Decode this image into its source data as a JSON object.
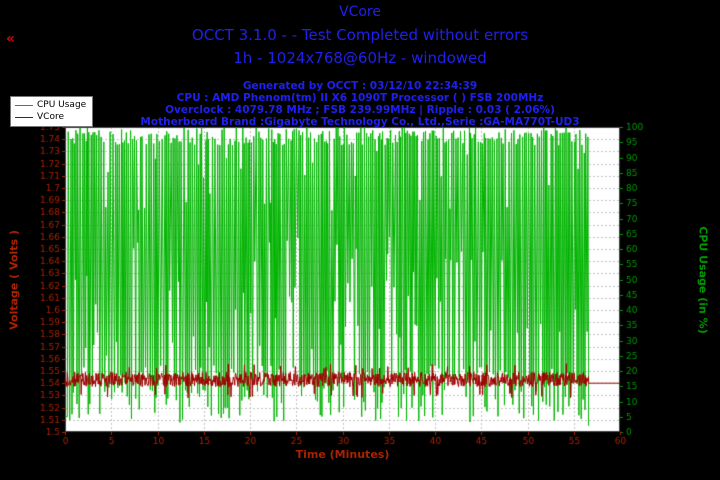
{
  "header": {
    "title": "VCore",
    "subtitle": "OCCT 3.1.0 -  - Test Completed without errors",
    "mode_line": "1h - 1024x768@60Hz - windowed",
    "info_lines": [
      "Generated by OCCT : 03/12/10 22:34:39",
      "CPU : AMD Phenom(tm) II X6 1090T Processor ( ) FSB 200MHz",
      "Overclock : 4079.78 MHz ; FSB 239.99MHz | Ripple : 0.03 ( 2.06%)",
      "Motherboard Brand :Gigabyte Technology Co., Ltd.,Serie :GA-MA770T-UD3"
    ],
    "title_color": "#2020ee"
  },
  "nav": {
    "prev_icon": "«",
    "color": "#e00000"
  },
  "legend": {
    "items": [
      {
        "label": "CPU Usage",
        "color": "#00b400"
      },
      {
        "label": "VCore",
        "color": "#a00000"
      }
    ]
  },
  "chart_data": {
    "type": "line",
    "title": "VCore",
    "xlabel": "Time (Minutes)",
    "xlabel_color": "#aa2200",
    "xlim": [
      0,
      60
    ],
    "x_tick_step": 5,
    "grid": true,
    "legend_position": "top-left-outside",
    "axes": {
      "left": {
        "label": "Voltage ( Volts )",
        "lim": [
          1.5,
          1.75
        ],
        "tick_step": 0.01,
        "color": "#aa2200"
      },
      "right": {
        "label": "CPU Usage (in %)",
        "lim": [
          0,
          100
        ],
        "tick_step": 5,
        "color": "#009900"
      }
    },
    "series": [
      {
        "name": "CPU Usage",
        "axis": "right",
        "color": "#00b400",
        "pattern": "rapid load/idle oscillation between ~5% and 100% for whole test",
        "start_value": 5,
        "end_value": 2,
        "data_end_min": 56.6,
        "half_period_min": 0.11,
        "high_main": [
          94,
          100
        ],
        "high_alt": [
          72,
          93
        ],
        "high_alt_p": 0.12,
        "low_main": [
          3,
          22
        ],
        "low_alt": [
          25,
          65
        ],
        "low_alt_p": 0.3,
        "seed": 20101203
      },
      {
        "name": "VCore",
        "axis": "left",
        "color": "#a00000",
        "pattern": "noisy band around 1.54 V, flat tail after test end",
        "mean": 1.543,
        "noise": 0.006,
        "dip_value": 1.528,
        "peak_value": 1.556,
        "sample_step_min": 0.05,
        "data_end_min": 56.6,
        "tail_value": 1.54,
        "tail_to_min": 60,
        "seed": 424242
      }
    ]
  }
}
